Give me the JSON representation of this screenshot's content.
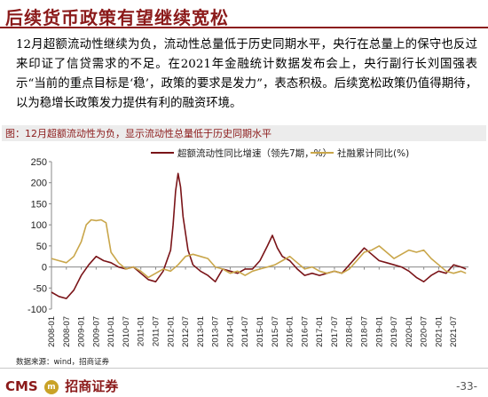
{
  "header": {
    "title": "后续货币政策有望继续宽松",
    "paragraph": "12月超额流动性继续为负，流动性总量低于历史同期水平，央行在总量上的保守也反过来印证了信贷需求的不足。在2021年金融统计数据发布会上，央行副行长刘国强表示“当前的重点目标是‘稳’，政策的要求是发力”，表态积极。后续宽松政策仍值得期待，以为稳增长政策发力提供有利的融资环境。"
  },
  "figure": {
    "caption": "图：12月超额流动性为负，显示流动性总量低于历史同期水平",
    "source": "数据来源：wind，招商证券"
  },
  "footer": {
    "logo_left": "CMS",
    "logo_badge": "m",
    "logo_right": "招商证券",
    "page": "-33-"
  },
  "colors": {
    "accent": "#8b1a1a",
    "series1": "#7a1418",
    "series2": "#c9a64a"
  },
  "chart_data": {
    "type": "line",
    "ylim": [
      -100,
      250
    ],
    "yticks": [
      -100,
      -50,
      0,
      50,
      100,
      150,
      200,
      250
    ],
    "xrange": [
      "2008-01",
      "2022-01"
    ],
    "xticks": [
      "2008-01",
      "2008-07",
      "2009-01",
      "2009-07",
      "2010-01",
      "2010-07",
      "2011-01",
      "2011-07",
      "2012-01",
      "2012-07",
      "2013-01",
      "2013-07",
      "2014-01",
      "2014-07",
      "2015-01",
      "2015-07",
      "2016-01",
      "2016-07",
      "2017-01",
      "2017-07",
      "2018-01",
      "2018-07",
      "2019-01",
      "2019-07",
      "2020-01",
      "2020-07",
      "2021-01",
      "2021-07"
    ],
    "legend_position": "top",
    "grid": false,
    "series": [
      {
        "name": "超额流动性同比增速（领先7期，%）",
        "color": "#7a1418",
        "points": [
          [
            "2008-01",
            -60
          ],
          [
            "2008-04",
            -70
          ],
          [
            "2008-07",
            -75
          ],
          [
            "2008-10",
            -55
          ],
          [
            "2009-01",
            -20
          ],
          [
            "2009-04",
            5
          ],
          [
            "2009-07",
            25
          ],
          [
            "2009-10",
            15
          ],
          [
            "2010-01",
            10
          ],
          [
            "2010-04",
            0
          ],
          [
            "2010-07",
            -5
          ],
          [
            "2010-10",
            0
          ],
          [
            "2011-01",
            -15
          ],
          [
            "2011-04",
            -30
          ],
          [
            "2011-07",
            -35
          ],
          [
            "2011-10",
            -10
          ],
          [
            "2012-01",
            40
          ],
          [
            "2012-02",
            100
          ],
          [
            "2012-03",
            180
          ],
          [
            "2012-04",
            222
          ],
          [
            "2012-05",
            190
          ],
          [
            "2012-06",
            120
          ],
          [
            "2012-08",
            40
          ],
          [
            "2012-10",
            5
          ],
          [
            "2013-01",
            -10
          ],
          [
            "2013-04",
            -20
          ],
          [
            "2013-07",
            -35
          ],
          [
            "2013-10",
            -5
          ],
          [
            "2014-01",
            -10
          ],
          [
            "2014-04",
            -15
          ],
          [
            "2014-07",
            -5
          ],
          [
            "2014-10",
            -5
          ],
          [
            "2015-01",
            15
          ],
          [
            "2015-04",
            50
          ],
          [
            "2015-06",
            75
          ],
          [
            "2015-08",
            45
          ],
          [
            "2015-10",
            25
          ],
          [
            "2016-01",
            15
          ],
          [
            "2016-04",
            -5
          ],
          [
            "2016-07",
            -20
          ],
          [
            "2016-10",
            -15
          ],
          [
            "2017-01",
            -20
          ],
          [
            "2017-04",
            -15
          ],
          [
            "2017-07",
            -10
          ],
          [
            "2017-10",
            -15
          ],
          [
            "2018-01",
            5
          ],
          [
            "2018-04",
            25
          ],
          [
            "2018-07",
            45
          ],
          [
            "2018-10",
            30
          ],
          [
            "2019-01",
            15
          ],
          [
            "2019-04",
            10
          ],
          [
            "2019-07",
            5
          ],
          [
            "2019-10",
            0
          ],
          [
            "2020-01",
            -10
          ],
          [
            "2020-04",
            -25
          ],
          [
            "2020-07",
            -35
          ],
          [
            "2020-10",
            -20
          ],
          [
            "2021-01",
            -10
          ],
          [
            "2021-04",
            -15
          ],
          [
            "2021-07",
            5
          ],
          [
            "2021-10",
            0
          ],
          [
            "2021-12",
            -5
          ]
        ]
      },
      {
        "name": "社融累计同比(%)",
        "color": "#c9a64a",
        "points": [
          [
            "2008-01",
            20
          ],
          [
            "2008-04",
            15
          ],
          [
            "2008-07",
            10
          ],
          [
            "2008-10",
            25
          ],
          [
            "2009-01",
            60
          ],
          [
            "2009-03",
            100
          ],
          [
            "2009-05",
            112
          ],
          [
            "2009-07",
            110
          ],
          [
            "2009-09",
            112
          ],
          [
            "2009-11",
            105
          ],
          [
            "2010-01",
            35
          ],
          [
            "2010-04",
            10
          ],
          [
            "2010-07",
            -5
          ],
          [
            "2010-10",
            0
          ],
          [
            "2011-01",
            -10
          ],
          [
            "2011-04",
            -25
          ],
          [
            "2011-07",
            -15
          ],
          [
            "2011-10",
            -5
          ],
          [
            "2012-01",
            -10
          ],
          [
            "2012-04",
            5
          ],
          [
            "2012-07",
            25
          ],
          [
            "2012-10",
            30
          ],
          [
            "2013-01",
            25
          ],
          [
            "2013-04",
            20
          ],
          [
            "2013-07",
            0
          ],
          [
            "2013-10",
            -5
          ],
          [
            "2014-01",
            -15
          ],
          [
            "2014-04",
            -10
          ],
          [
            "2014-07",
            -20
          ],
          [
            "2014-10",
            -10
          ],
          [
            "2015-01",
            -5
          ],
          [
            "2015-04",
            0
          ],
          [
            "2015-07",
            5
          ],
          [
            "2015-10",
            15
          ],
          [
            "2016-01",
            25
          ],
          [
            "2016-04",
            10
          ],
          [
            "2016-07",
            -5
          ],
          [
            "2016-10",
            0
          ],
          [
            "2017-01",
            -10
          ],
          [
            "2017-04",
            -15
          ],
          [
            "2017-07",
            -10
          ],
          [
            "2017-10",
            -15
          ],
          [
            "2018-01",
            -5
          ],
          [
            "2018-04",
            15
          ],
          [
            "2018-07",
            35
          ],
          [
            "2018-10",
            40
          ],
          [
            "2019-01",
            50
          ],
          [
            "2019-04",
            35
          ],
          [
            "2019-07",
            20
          ],
          [
            "2019-10",
            30
          ],
          [
            "2020-01",
            40
          ],
          [
            "2020-04",
            35
          ],
          [
            "2020-07",
            40
          ],
          [
            "2020-10",
            20
          ],
          [
            "2021-01",
            5
          ],
          [
            "2021-04",
            -10
          ],
          [
            "2021-07",
            -15
          ],
          [
            "2021-10",
            -10
          ],
          [
            "2021-12",
            -15
          ]
        ]
      }
    ]
  }
}
